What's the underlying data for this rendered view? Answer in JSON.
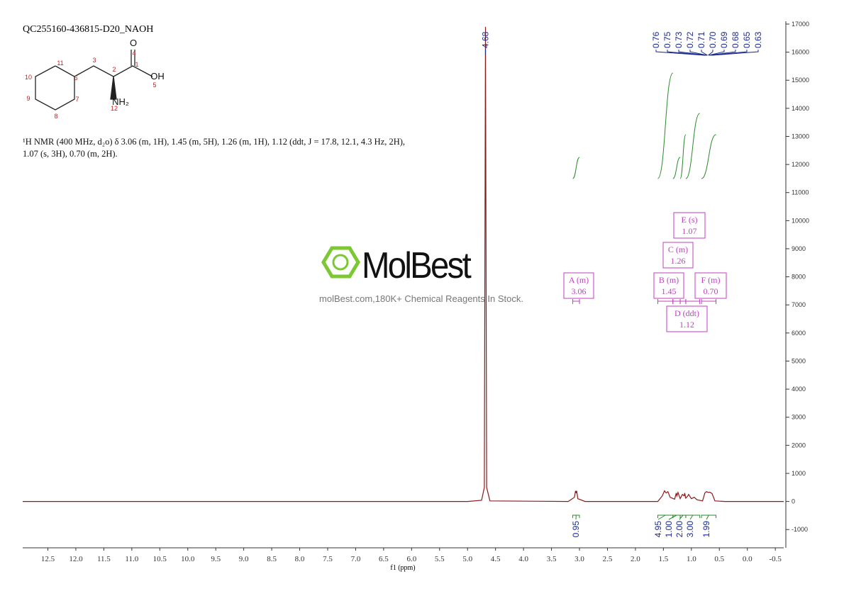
{
  "chart_data": {
    "type": "line",
    "title": "QC255160-436815-D20_NAOH",
    "xlabel": "f1 (ppm)",
    "color": "#8b1a1a",
    "description": "¹H NMR (400 MHz, d₂o) δ 3.06 (m, 1H), 1.45 (m, 5H), 1.26 (m, 1H), 1.12 (ddt, J = 17.8, 12.1, 4.3 Hz, 2H), 1.07 (s, 3H), 0.70 (m, 2H).",
    "xlim": [
      12.95,
      -0.65
    ],
    "xticks": [
      12.5,
      {
        "value": 12,
        "label": "12.0"
      },
      11.5,
      {
        "value": 11,
        "label": "11.0"
      },
      10.5,
      {
        "value": 10,
        "label": "10.0"
      },
      9.5,
      {
        "value": 9,
        "label": "9.0"
      },
      8.5,
      {
        "value": 8,
        "label": "8.0"
      },
      7.5,
      {
        "value": 7,
        "label": "7.0"
      },
      6.5,
      {
        "value": 6,
        "label": "6.0"
      },
      5.5,
      {
        "value": 5,
        "label": "5.0"
      },
      4.5,
      {
        "value": 4,
        "label": "4.0"
      },
      3.5,
      {
        "value": 3,
        "label": "3.0"
      },
      2.5,
      {
        "value": 2,
        "label": "2.0"
      },
      1.5,
      {
        "value": 1,
        "label": "1.0"
      },
      0.5,
      {
        "value": 0,
        "label": "0.0"
      },
      -0.5
    ],
    "ylim": [
      -1650,
      17100
    ],
    "yticks": [
      -1000,
      0,
      1000,
      2000,
      3000,
      4000,
      5000,
      6000,
      7000,
      8000,
      9000,
      10000,
      11000,
      12000,
      13000,
      14000,
      15000,
      16000,
      17000
    ],
    "x": [
      12.95,
      5.0,
      4.75,
      4.7,
      4.68,
      4.66,
      4.6,
      3.2,
      3.09,
      3.07,
      3.06,
      3.05,
      3.03,
      2.9,
      1.6,
      1.52,
      1.48,
      1.45,
      1.42,
      1.38,
      1.3,
      1.27,
      1.26,
      1.24,
      1.2,
      1.16,
      1.13,
      1.12,
      1.1,
      1.07,
      1.05,
      1.0,
      0.95,
      0.9,
      0.8,
      0.76,
      0.73,
      0.7,
      0.67,
      0.63,
      0.58,
      0.4,
      -0.65
    ],
    "values": [
      0,
      0,
      40,
      500,
      16900,
      500,
      20,
      0,
      150,
      380,
      300,
      380,
      100,
      0,
      0,
      200,
      380,
      300,
      350,
      150,
      80,
      300,
      200,
      320,
      100,
      250,
      200,
      300,
      120,
      180,
      250,
      100,
      150,
      60,
      20,
      300,
      350,
      320,
      330,
      280,
      20,
      0,
      0
    ],
    "peak_labels": [
      4.68,
      0.76,
      0.75,
      0.73,
      0.72,
      0.71,
      {
        "value": 0.7,
        "label": "0.70"
      },
      0.69,
      0.68,
      0.65,
      0.63
    ],
    "integrals": [
      {
        "range": [
          3.12,
          3.0
        ],
        "value": 0.95
      },
      {
        "range": [
          1.6,
          1.33
        ],
        "value": 4.95
      },
      {
        "range": [
          1.33,
          1.2
        ],
        "value": {
          "value": 1,
          "label": "1.00"
        }
      },
      {
        "range": [
          1.2,
          1.1
        ],
        "value": {
          "value": 2,
          "label": "2.00"
        }
      },
      {
        "range": [
          1.1,
          0.85
        ],
        "value": {
          "value": 3,
          "label": "3.00"
        }
      },
      {
        "range": [
          0.82,
          0.56
        ],
        "value": 1.99
      }
    ],
    "multiplets": [
      {
        "label": "A (m)",
        "shift": 3.06,
        "range": [
          3.12,
          3.0
        ]
      },
      {
        "label": "B (m)",
        "shift": 1.45,
        "range": [
          1.6,
          1.33
        ]
      },
      {
        "label": "C (m)",
        "shift": 1.26,
        "range": [
          1.33,
          1.2
        ]
      },
      {
        "label": "D (ddt)",
        "shift": 1.12,
        "range": [
          1.2,
          1.1
        ]
      },
      {
        "label": "E (s)",
        "shift": 1.07,
        "range": [
          1.1,
          0.85
        ]
      },
      {
        "label": "F (m)",
        "shift": {
          "value": 0.7,
          "label": "0.70"
        },
        "range": [
          0.82,
          0.56
        ]
      }
    ],
    "watermark": {
      "brand": "MolBest",
      "tagline": "molBest.com,180K+ Chemical Reagents In Stock."
    },
    "structure": {
      "atoms": [
        "O",
        "OH",
        "NH₂"
      ],
      "numbers": [
        "1",
        "2",
        "3",
        "4",
        "5",
        "6",
        "7",
        "8",
        "9",
        "10",
        "11",
        "12"
      ]
    }
  }
}
